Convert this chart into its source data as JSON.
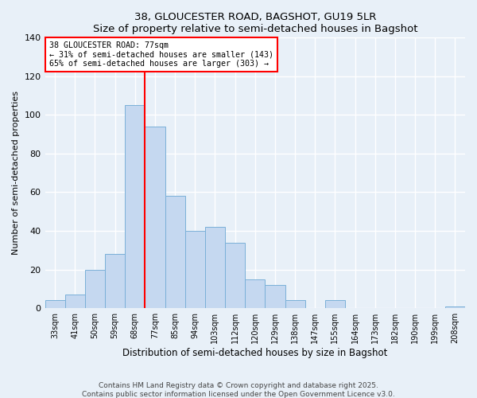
{
  "title": "38, GLOUCESTER ROAD, BAGSHOT, GU19 5LR",
  "subtitle": "Size of property relative to semi-detached houses in Bagshot",
  "xlabel": "Distribution of semi-detached houses by size in Bagshot",
  "ylabel": "Number of semi-detached properties",
  "bar_color": "#c5d8f0",
  "bar_edge_color": "#7ab0d8",
  "background_color": "#e8f0f8",
  "grid_color": "#ffffff",
  "categories": [
    "33sqm",
    "41sqm",
    "50sqm",
    "59sqm",
    "68sqm",
    "77sqm",
    "85sqm",
    "94sqm",
    "103sqm",
    "112sqm",
    "120sqm",
    "129sqm",
    "138sqm",
    "147sqm",
    "155sqm",
    "164sqm",
    "173sqm",
    "182sqm",
    "190sqm",
    "199sqm",
    "208sqm"
  ],
  "values": [
    4,
    7,
    20,
    28,
    105,
    94,
    58,
    40,
    42,
    34,
    15,
    12,
    4,
    0,
    4,
    0,
    0,
    0,
    0,
    0,
    1
  ],
  "property_label": "38 GLOUCESTER ROAD: 77sqm",
  "smaller_pct": 31,
  "smaller_count": 143,
  "larger_pct": 65,
  "larger_count": 303,
  "vline_bin_index": 5,
  "ylim": [
    0,
    140
  ],
  "yticks": [
    0,
    20,
    40,
    60,
    80,
    100,
    120,
    140
  ],
  "footnote1": "Contains HM Land Registry data © Crown copyright and database right 2025.",
  "footnote2": "Contains public sector information licensed under the Open Government Licence v3.0."
}
